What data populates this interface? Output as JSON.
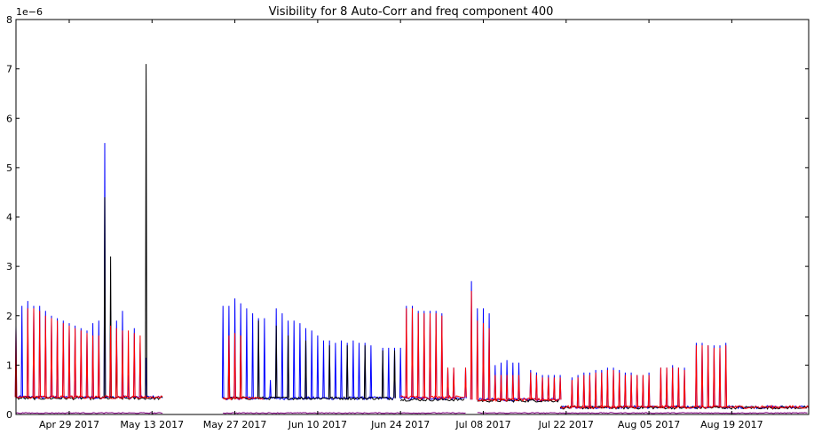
{
  "chart_data": {
    "type": "line",
    "title": "Visibility for 8 Auto-Corr and freq component 400",
    "xlabel": "",
    "ylabel": "",
    "y_scale_label": "1e−6",
    "x_range": [
      "2017-04-20",
      "2017-09-01"
    ],
    "ylim": [
      0,
      8
    ],
    "grid": false,
    "x_ticks": [
      {
        "date": "2017-04-29",
        "label": "Apr 29 2017"
      },
      {
        "date": "2017-05-13",
        "label": "May 13 2017"
      },
      {
        "date": "2017-05-27",
        "label": "May 27 2017"
      },
      {
        "date": "2017-06-10",
        "label": "Jun 10 2017"
      },
      {
        "date": "2017-06-24",
        "label": "Jun 24 2017"
      },
      {
        "date": "2017-07-08",
        "label": "Jul 08 2017"
      },
      {
        "date": "2017-07-22",
        "label": "Jul 22 2017"
      },
      {
        "date": "2017-08-05",
        "label": "Aug 05 2017"
      },
      {
        "date": "2017-08-19",
        "label": "Aug 19 2017"
      }
    ],
    "y_ticks": [
      0,
      1,
      2,
      3,
      4,
      5,
      6,
      7,
      8
    ],
    "series": [
      {
        "color": "#0000ff",
        "baseline_segments": [
          [
            "2017-04-20",
            "2017-05-15",
            0.35
          ],
          [
            "2017-05-25",
            "2017-06-23",
            0.33
          ],
          [
            "2017-06-24",
            "2017-07-05",
            0.33
          ],
          [
            "2017-07-07",
            "2017-07-21",
            0.3
          ],
          [
            "2017-07-21",
            "2017-09-01",
            0.15
          ]
        ],
        "spikes": [
          [
            "2017-04-20",
            1.8
          ],
          [
            "2017-04-21",
            2.2
          ],
          [
            "2017-04-22",
            2.3
          ],
          [
            "2017-04-23",
            2.2
          ],
          [
            "2017-04-24",
            2.2
          ],
          [
            "2017-04-25",
            2.1
          ],
          [
            "2017-04-26",
            2.0
          ],
          [
            "2017-04-27",
            1.95
          ],
          [
            "2017-04-28",
            1.9
          ],
          [
            "2017-04-29",
            1.85
          ],
          [
            "2017-04-30",
            1.8
          ],
          [
            "2017-05-01",
            1.75
          ],
          [
            "2017-05-02",
            1.7
          ],
          [
            "2017-05-03",
            1.85
          ],
          [
            "2017-05-04",
            1.9
          ],
          [
            "2017-05-05",
            5.5
          ],
          [
            "2017-05-06",
            2.1
          ],
          [
            "2017-05-07",
            1.9
          ],
          [
            "2017-05-08",
            2.1
          ],
          [
            "2017-05-09",
            0.8
          ],
          [
            "2017-05-10",
            1.75
          ],
          [
            "2017-05-11",
            1.45
          ],
          [
            "2017-05-12",
            1.15
          ],
          [
            "2017-05-25",
            2.2
          ],
          [
            "2017-05-26",
            2.2
          ],
          [
            "2017-05-27",
            2.35
          ],
          [
            "2017-05-28",
            2.25
          ],
          [
            "2017-05-29",
            2.15
          ],
          [
            "2017-05-30",
            2.05
          ],
          [
            "2017-05-31",
            1.95
          ],
          [
            "2017-06-01",
            1.95
          ],
          [
            "2017-06-02",
            0.7
          ],
          [
            "2017-06-03",
            2.15
          ],
          [
            "2017-06-04",
            2.05
          ],
          [
            "2017-06-05",
            1.9
          ],
          [
            "2017-06-06",
            1.9
          ],
          [
            "2017-06-07",
            1.85
          ],
          [
            "2017-06-08",
            1.75
          ],
          [
            "2017-06-09",
            1.7
          ],
          [
            "2017-06-10",
            1.6
          ],
          [
            "2017-06-11",
            1.5
          ],
          [
            "2017-06-12",
            1.5
          ],
          [
            "2017-06-13",
            1.45
          ],
          [
            "2017-06-14",
            1.5
          ],
          [
            "2017-06-15",
            1.45
          ],
          [
            "2017-06-16",
            1.5
          ],
          [
            "2017-06-17",
            1.45
          ],
          [
            "2017-06-18",
            1.45
          ],
          [
            "2017-06-19",
            1.4
          ],
          [
            "2017-06-21",
            1.35
          ],
          [
            "2017-06-22",
            1.35
          ],
          [
            "2017-06-23",
            1.35
          ],
          [
            "2017-06-24",
            1.35
          ],
          [
            "2017-06-25",
            2.2
          ],
          [
            "2017-06-26",
            2.2
          ],
          [
            "2017-06-27",
            2.1
          ],
          [
            "2017-06-28",
            2.1
          ],
          [
            "2017-06-29",
            2.1
          ],
          [
            "2017-06-30",
            2.1
          ],
          [
            "2017-07-01",
            2.05
          ],
          [
            "2017-07-02",
            0.95
          ],
          [
            "2017-07-03",
            0.95
          ],
          [
            "2017-07-05",
            0.95
          ],
          [
            "2017-07-06",
            2.7
          ],
          [
            "2017-07-07",
            2.15
          ],
          [
            "2017-07-08",
            2.15
          ],
          [
            "2017-07-09",
            2.05
          ],
          [
            "2017-07-10",
            1.0
          ],
          [
            "2017-07-11",
            1.05
          ],
          [
            "2017-07-12",
            1.1
          ],
          [
            "2017-07-13",
            1.05
          ],
          [
            "2017-07-14",
            1.05
          ],
          [
            "2017-07-16",
            0.9
          ],
          [
            "2017-07-17",
            0.85
          ],
          [
            "2017-07-18",
            0.8
          ],
          [
            "2017-07-19",
            0.8
          ],
          [
            "2017-07-20",
            0.8
          ],
          [
            "2017-07-21",
            0.8
          ],
          [
            "2017-07-23",
            0.75
          ],
          [
            "2017-07-24",
            0.8
          ],
          [
            "2017-07-25",
            0.85
          ],
          [
            "2017-07-26",
            0.85
          ],
          [
            "2017-07-27",
            0.9
          ],
          [
            "2017-07-28",
            0.9
          ],
          [
            "2017-07-29",
            0.95
          ],
          [
            "2017-07-30",
            0.95
          ],
          [
            "2017-07-31",
            0.9
          ],
          [
            "2017-08-01",
            0.85
          ],
          [
            "2017-08-02",
            0.85
          ],
          [
            "2017-08-03",
            0.8
          ],
          [
            "2017-08-04",
            0.8
          ],
          [
            "2017-08-05",
            0.85
          ],
          [
            "2017-08-07",
            0.95
          ],
          [
            "2017-08-08",
            0.95
          ],
          [
            "2017-08-09",
            1.0
          ],
          [
            "2017-08-10",
            0.95
          ],
          [
            "2017-08-11",
            0.95
          ],
          [
            "2017-08-13",
            1.45
          ],
          [
            "2017-08-14",
            1.45
          ],
          [
            "2017-08-15",
            1.4
          ],
          [
            "2017-08-16",
            1.4
          ],
          [
            "2017-08-17",
            1.4
          ],
          [
            "2017-08-18",
            1.45
          ]
        ]
      },
      {
        "color": "#000000",
        "baseline_segments": [
          [
            "2017-04-20",
            "2017-05-15",
            0.33
          ],
          [
            "2017-05-25",
            "2017-06-23",
            0.33
          ],
          [
            "2017-06-24",
            "2017-07-05",
            0.3
          ],
          [
            "2017-07-07",
            "2017-07-21",
            0.28
          ],
          [
            "2017-07-21",
            "2017-09-01",
            0.14
          ]
        ],
        "spikes": [
          [
            "2017-05-05",
            4.4
          ],
          [
            "2017-05-06",
            3.2
          ],
          [
            "2017-05-07",
            1.5
          ],
          [
            "2017-05-12",
            7.1
          ],
          [
            "2017-05-26",
            1.3
          ],
          [
            "2017-05-28",
            1.6
          ],
          [
            "2017-05-31",
            1.9
          ],
          [
            "2017-06-03",
            1.8
          ],
          [
            "2017-06-05",
            1.6
          ],
          [
            "2017-06-08",
            1.5
          ],
          [
            "2017-06-12",
            1.4
          ],
          [
            "2017-06-15",
            1.4
          ],
          [
            "2017-06-18",
            1.4
          ],
          [
            "2017-06-21",
            1.3
          ],
          [
            "2017-06-23",
            1.3
          ]
        ]
      },
      {
        "color": "#ff0000",
        "baseline_segments": [
          [
            "2017-04-20",
            "2017-05-15",
            0.35
          ],
          [
            "2017-05-25",
            "2017-06-01",
            0.33
          ],
          [
            "2017-06-24",
            "2017-07-05",
            0.35
          ],
          [
            "2017-07-07",
            "2017-07-21",
            0.3
          ],
          [
            "2017-07-21",
            "2017-09-01",
            0.15
          ]
        ],
        "spikes": [
          [
            "2017-04-20",
            1.75
          ],
          [
            "2017-04-22",
            2.15
          ],
          [
            "2017-04-23",
            2.15
          ],
          [
            "2017-04-24",
            2.1
          ],
          [
            "2017-04-25",
            2.0
          ],
          [
            "2017-04-26",
            1.95
          ],
          [
            "2017-04-27",
            1.9
          ],
          [
            "2017-04-28",
            1.85
          ],
          [
            "2017-04-29",
            1.8
          ],
          [
            "2017-04-30",
            1.75
          ],
          [
            "2017-05-01",
            1.7
          ],
          [
            "2017-05-02",
            1.65
          ],
          [
            "2017-05-03",
            1.6
          ],
          [
            "2017-05-04",
            1.6
          ],
          [
            "2017-05-06",
            1.8
          ],
          [
            "2017-05-07",
            1.75
          ],
          [
            "2017-05-08",
            1.7
          ],
          [
            "2017-05-09",
            1.7
          ],
          [
            "2017-05-10",
            1.65
          ],
          [
            "2017-05-11",
            1.6
          ],
          [
            "2017-05-26",
            1.6
          ],
          [
            "2017-05-27",
            1.65
          ],
          [
            "2017-05-28",
            1.6
          ],
          [
            "2017-06-25",
            2.15
          ],
          [
            "2017-06-26",
            2.15
          ],
          [
            "2017-06-27",
            2.05
          ],
          [
            "2017-06-28",
            2.05
          ],
          [
            "2017-06-29",
            2.05
          ],
          [
            "2017-06-30",
            2.05
          ],
          [
            "2017-07-01",
            2.0
          ],
          [
            "2017-07-02",
            0.95
          ],
          [
            "2017-07-03",
            0.95
          ],
          [
            "2017-07-05",
            0.95
          ],
          [
            "2017-07-06",
            2.5
          ],
          [
            "2017-07-07",
            1.9
          ],
          [
            "2017-07-08",
            1.85
          ],
          [
            "2017-07-09",
            1.75
          ],
          [
            "2017-07-10",
            0.8
          ],
          [
            "2017-07-11",
            0.8
          ],
          [
            "2017-07-12",
            0.8
          ],
          [
            "2017-07-13",
            0.8
          ],
          [
            "2017-07-14",
            0.8
          ],
          [
            "2017-07-16",
            0.85
          ],
          [
            "2017-07-17",
            0.8
          ],
          [
            "2017-07-18",
            0.75
          ],
          [
            "2017-07-19",
            0.75
          ],
          [
            "2017-07-20",
            0.75
          ],
          [
            "2017-07-21",
            0.75
          ],
          [
            "2017-07-23",
            0.7
          ],
          [
            "2017-07-24",
            0.75
          ],
          [
            "2017-07-25",
            0.8
          ],
          [
            "2017-07-26",
            0.8
          ],
          [
            "2017-07-27",
            0.85
          ],
          [
            "2017-07-28",
            0.85
          ],
          [
            "2017-07-29",
            0.9
          ],
          [
            "2017-07-30",
            0.9
          ],
          [
            "2017-07-31",
            0.85
          ],
          [
            "2017-08-01",
            0.8
          ],
          [
            "2017-08-02",
            0.8
          ],
          [
            "2017-08-03",
            0.8
          ],
          [
            "2017-08-04",
            0.8
          ],
          [
            "2017-08-05",
            0.8
          ],
          [
            "2017-08-07",
            0.95
          ],
          [
            "2017-08-08",
            0.95
          ],
          [
            "2017-08-09",
            0.95
          ],
          [
            "2017-08-10",
            0.95
          ],
          [
            "2017-08-11",
            0.9
          ],
          [
            "2017-08-13",
            1.4
          ],
          [
            "2017-08-14",
            1.4
          ],
          [
            "2017-08-15",
            1.4
          ],
          [
            "2017-08-16",
            1.35
          ],
          [
            "2017-08-17",
            1.35
          ],
          [
            "2017-08-18",
            1.4
          ]
        ]
      },
      {
        "color": "#800080",
        "baseline_segments": [
          [
            "2017-04-20",
            "2017-05-15",
            0.03
          ],
          [
            "2017-05-25",
            "2017-07-05",
            0.03
          ],
          [
            "2017-07-07",
            "2017-09-01",
            0.03
          ]
        ],
        "spikes": []
      }
    ]
  }
}
